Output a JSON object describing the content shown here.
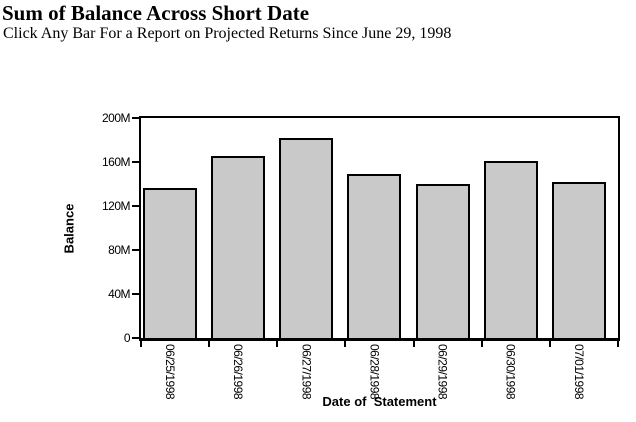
{
  "chart_data": {
    "type": "bar",
    "title": "Sum of Balance Across Short Date",
    "subtitle": "Click Any Bar For a Report on Projected Returns Since June 29, 1998",
    "categories": [
      "06/25/1998",
      "06/26/1998",
      "06/27/1998",
      "06/28/1998",
      "06/29/1998",
      "06/30/1998",
      "07/01/1998"
    ],
    "values_millions": [
      136,
      165,
      182,
      149,
      140,
      161,
      142
    ],
    "xlabel": "Date of  Statement",
    "ylabel": "Balance",
    "ylim": [
      0,
      200
    ],
    "ytick_interval": 40,
    "ytick_labels": [
      "0",
      "40M",
      "80M",
      "120M",
      "160M",
      "200M"
    ],
    "grid": false,
    "legend": false,
    "bar_fill": "#C9C9C9",
    "bar_border": "#000000",
    "axis_color": "#000000",
    "background": "#FFFFFF"
  }
}
